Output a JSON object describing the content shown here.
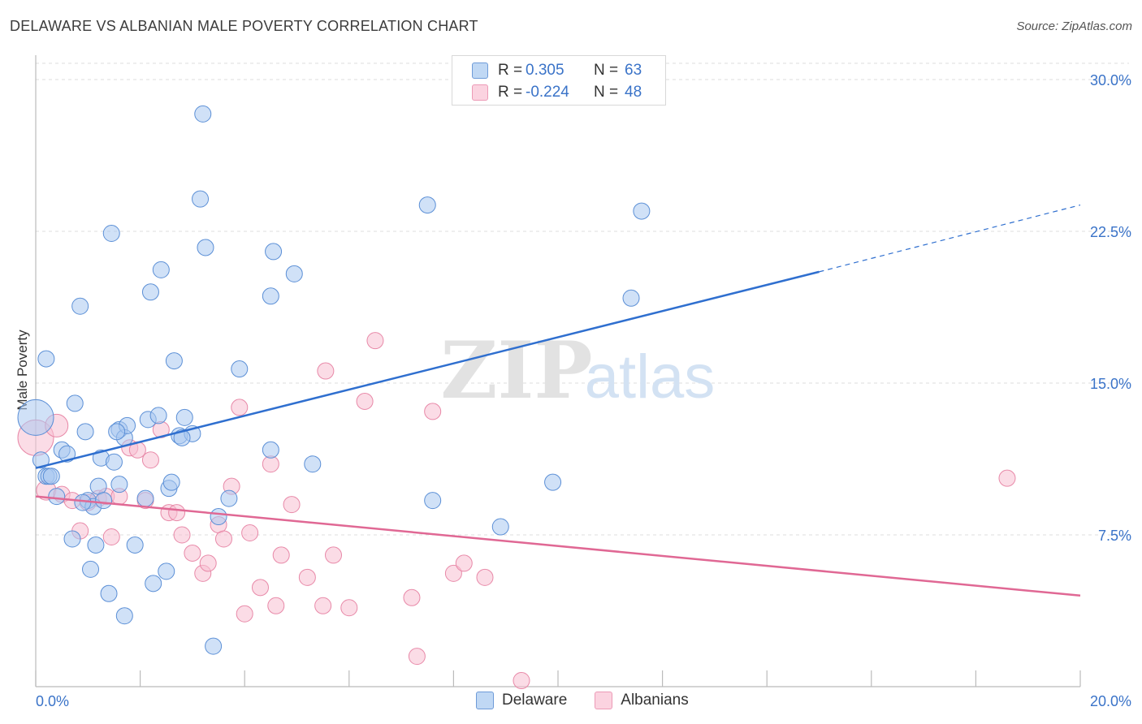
{
  "header": {
    "title": "DELAWARE VS ALBANIAN MALE POVERTY CORRELATION CHART",
    "source": "Source: ZipAtlas.com"
  },
  "watermark": {
    "zip": "ZIP",
    "atlas": "atlas"
  },
  "legend_top": [
    {
      "r_label": "R =",
      "r_value": "0.305",
      "n_label": "N =",
      "n_value": "63"
    },
    {
      "r_label": "R =",
      "r_value": "-0.224",
      "n_label": "N =",
      "n_value": "48"
    }
  ],
  "legend_bottom": [
    {
      "label": "Delaware"
    },
    {
      "label": "Albanians"
    }
  ],
  "colors": {
    "delaware_fill": "#a9c8f0",
    "delaware_stroke": "#5b8fd6",
    "delaware_line": "#2f6fcf",
    "albanians_fill": "#f7c0d2",
    "albanians_stroke": "#e889a8",
    "albanians_line": "#e06894",
    "tick_label": "#3a73c8"
  },
  "chart_data": {
    "type": "scatter",
    "title": "DELAWARE VS ALBANIAN MALE POVERTY CORRELATION CHART",
    "xlabel": "",
    "ylabel": "Male Poverty",
    "xlim": [
      0,
      20
    ],
    "ylim": [
      0,
      30
    ],
    "x_tick_labels": [
      {
        "value": 0,
        "label": "0.0%"
      },
      {
        "value": 20,
        "label": "20.0%"
      }
    ],
    "y_tick_labels": [
      {
        "value": 7.5,
        "label": "7.5%"
      },
      {
        "value": 15,
        "label": "15.0%"
      },
      {
        "value": 22.5,
        "label": "22.5%"
      },
      {
        "value": 30,
        "label": "30.0%"
      }
    ],
    "grid": true,
    "legend_position": "top-center",
    "series": [
      {
        "name": "Delaware",
        "r": 0.305,
        "n": 63,
        "trend": {
          "x0": 0,
          "y0": 10.8,
          "x1": 15.0,
          "y1": 20.5,
          "dash_to_x": 20.0,
          "dash_to_y": 23.8
        },
        "points": [
          [
            0.0,
            13.3,
            22
          ],
          [
            0.1,
            11.2,
            10
          ],
          [
            0.2,
            16.2,
            10
          ],
          [
            0.2,
            10.4,
            10
          ],
          [
            0.25,
            10.4,
            10
          ],
          [
            0.3,
            10.4,
            10
          ],
          [
            0.4,
            9.4,
            10
          ],
          [
            0.5,
            11.7,
            10
          ],
          [
            0.6,
            11.5,
            10
          ],
          [
            0.7,
            7.3,
            10
          ],
          [
            0.75,
            14.0,
            10
          ],
          [
            0.85,
            18.8,
            10
          ],
          [
            0.95,
            12.6,
            10
          ],
          [
            1.0,
            9.2,
            10
          ],
          [
            1.05,
            5.8,
            10
          ],
          [
            1.1,
            8.9,
            10
          ],
          [
            1.15,
            7.0,
            10
          ],
          [
            1.2,
            9.9,
            10
          ],
          [
            1.25,
            11.3,
            10
          ],
          [
            1.3,
            9.2,
            10
          ],
          [
            1.4,
            4.6,
            10
          ],
          [
            1.45,
            22.4,
            10
          ],
          [
            1.5,
            11.1,
            10
          ],
          [
            1.6,
            10.0,
            10
          ],
          [
            1.6,
            12.7,
            10
          ],
          [
            1.7,
            12.3,
            10
          ],
          [
            1.7,
            3.5,
            10
          ],
          [
            1.75,
            12.9,
            10
          ],
          [
            1.9,
            7.0,
            10
          ],
          [
            2.1,
            9.3,
            10
          ],
          [
            2.15,
            13.2,
            10
          ],
          [
            2.2,
            19.5,
            10
          ],
          [
            2.25,
            5.1,
            10
          ],
          [
            2.35,
            13.4,
            10
          ],
          [
            2.4,
            20.6,
            10
          ],
          [
            2.5,
            5.7,
            10
          ],
          [
            2.55,
            9.8,
            10
          ],
          [
            2.6,
            10.1,
            10
          ],
          [
            2.65,
            16.1,
            10
          ],
          [
            2.75,
            12.4,
            10
          ],
          [
            2.85,
            13.3,
            10
          ],
          [
            3.0,
            12.5,
            10
          ],
          [
            3.15,
            24.1,
            10
          ],
          [
            3.2,
            28.3,
            10
          ],
          [
            3.25,
            21.7,
            10
          ],
          [
            3.4,
            2.0,
            10
          ],
          [
            3.5,
            8.4,
            10
          ],
          [
            3.7,
            9.3,
            10
          ],
          [
            3.9,
            15.7,
            10
          ],
          [
            4.5,
            19.3,
            10
          ],
          [
            4.55,
            21.5,
            10
          ],
          [
            4.5,
            11.7,
            10
          ],
          [
            4.95,
            20.4,
            10
          ],
          [
            5.3,
            11.0,
            10
          ],
          [
            7.5,
            23.8,
            10
          ],
          [
            7.6,
            9.2,
            10
          ],
          [
            8.9,
            7.9,
            10
          ],
          [
            9.9,
            10.1,
            10
          ],
          [
            11.4,
            19.2,
            10
          ],
          [
            11.6,
            23.5,
            10
          ],
          [
            1.55,
            12.6,
            10
          ],
          [
            0.9,
            9.1,
            10
          ],
          [
            2.8,
            12.3,
            10
          ]
        ]
      },
      {
        "name": "Albanians",
        "r": -0.224,
        "n": 48,
        "trend": {
          "x0": 0,
          "y0": 9.4,
          "x1": 20.0,
          "y1": 4.5
        },
        "points": [
          [
            0.0,
            12.3,
            22
          ],
          [
            0.2,
            9.7,
            12
          ],
          [
            0.4,
            12.9,
            14
          ],
          [
            0.5,
            9.5,
            10
          ],
          [
            0.7,
            9.2,
            10
          ],
          [
            0.85,
            7.7,
            10
          ],
          [
            1.0,
            9.1,
            10
          ],
          [
            1.2,
            9.3,
            10
          ],
          [
            1.35,
            9.4,
            10
          ],
          [
            1.45,
            7.4,
            10
          ],
          [
            1.6,
            9.4,
            10
          ],
          [
            1.8,
            11.8,
            10
          ],
          [
            1.95,
            11.7,
            10
          ],
          [
            2.1,
            9.2,
            10
          ],
          [
            2.2,
            11.2,
            10
          ],
          [
            2.4,
            12.7,
            10
          ],
          [
            2.55,
            8.6,
            10
          ],
          [
            2.7,
            8.6,
            10
          ],
          [
            2.8,
            7.5,
            10
          ],
          [
            3.0,
            6.6,
            10
          ],
          [
            3.2,
            5.6,
            10
          ],
          [
            3.3,
            6.1,
            10
          ],
          [
            3.5,
            8.0,
            10
          ],
          [
            3.6,
            7.3,
            10
          ],
          [
            3.75,
            9.9,
            10
          ],
          [
            3.9,
            13.8,
            10
          ],
          [
            4.0,
            3.6,
            10
          ],
          [
            4.1,
            7.6,
            10
          ],
          [
            4.3,
            4.9,
            10
          ],
          [
            4.5,
            11.0,
            10
          ],
          [
            4.6,
            4.0,
            10
          ],
          [
            4.7,
            6.5,
            10
          ],
          [
            4.9,
            9.0,
            10
          ],
          [
            5.2,
            5.4,
            10
          ],
          [
            5.5,
            4.0,
            10
          ],
          [
            5.55,
            15.6,
            10
          ],
          [
            5.7,
            6.5,
            10
          ],
          [
            6.0,
            3.9,
            10
          ],
          [
            6.3,
            14.1,
            10
          ],
          [
            6.5,
            17.1,
            10
          ],
          [
            7.2,
            4.4,
            10
          ],
          [
            7.3,
            1.5,
            10
          ],
          [
            7.6,
            13.6,
            10
          ],
          [
            8.0,
            5.6,
            10
          ],
          [
            8.2,
            6.1,
            10
          ],
          [
            8.6,
            5.4,
            10
          ],
          [
            9.3,
            0.3,
            10
          ],
          [
            18.6,
            10.3,
            10
          ]
        ]
      }
    ]
  }
}
